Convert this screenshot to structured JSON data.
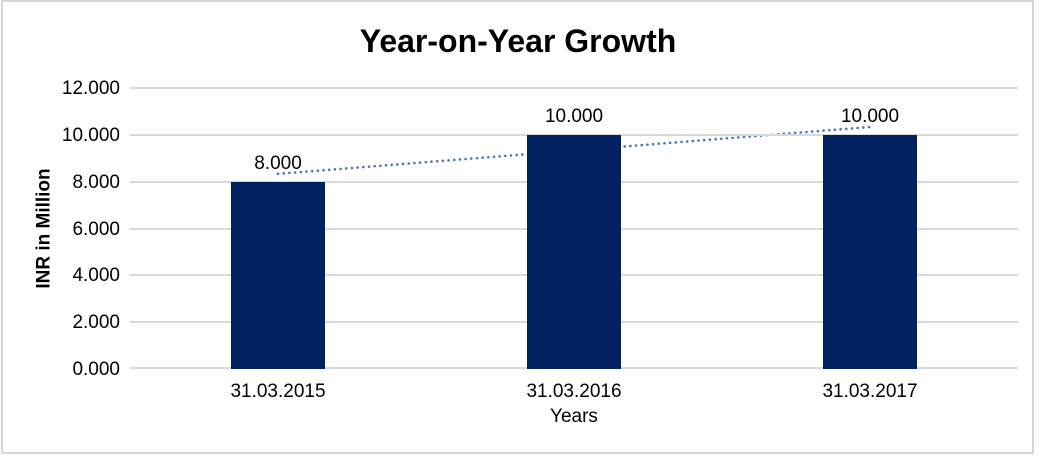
{
  "chart_data": {
    "type": "bar",
    "title": "Year-on-Year Growth",
    "xlabel": "Years",
    "ylabel": "INR in Million",
    "categories": [
      "31.03.2015",
      "31.03.2016",
      "31.03.2017"
    ],
    "values": [
      8,
      10,
      10
    ],
    "value_labels": [
      "8.000",
      "10.000",
      "10.000"
    ],
    "y_ticks": [
      {
        "value": 0,
        "label": "0.000"
      },
      {
        "value": 2,
        "label": "2.000"
      },
      {
        "value": 4,
        "label": "4.000"
      },
      {
        "value": 6,
        "label": "6.000"
      },
      {
        "value": 8,
        "label": "8.000"
      },
      {
        "value": 10,
        "label": "10.000"
      },
      {
        "value": 12,
        "label": "12.000"
      }
    ],
    "ylim": [
      0,
      12
    ],
    "grid": true,
    "legend": false,
    "trendline": {
      "type": "linear",
      "style": "dotted",
      "color": "#4472C4"
    },
    "colors": {
      "bar": "#002060",
      "gridline": "#D9D9D9",
      "border": "#D6D6D6",
      "text": "#000000",
      "background": "#FFFFFF"
    }
  }
}
